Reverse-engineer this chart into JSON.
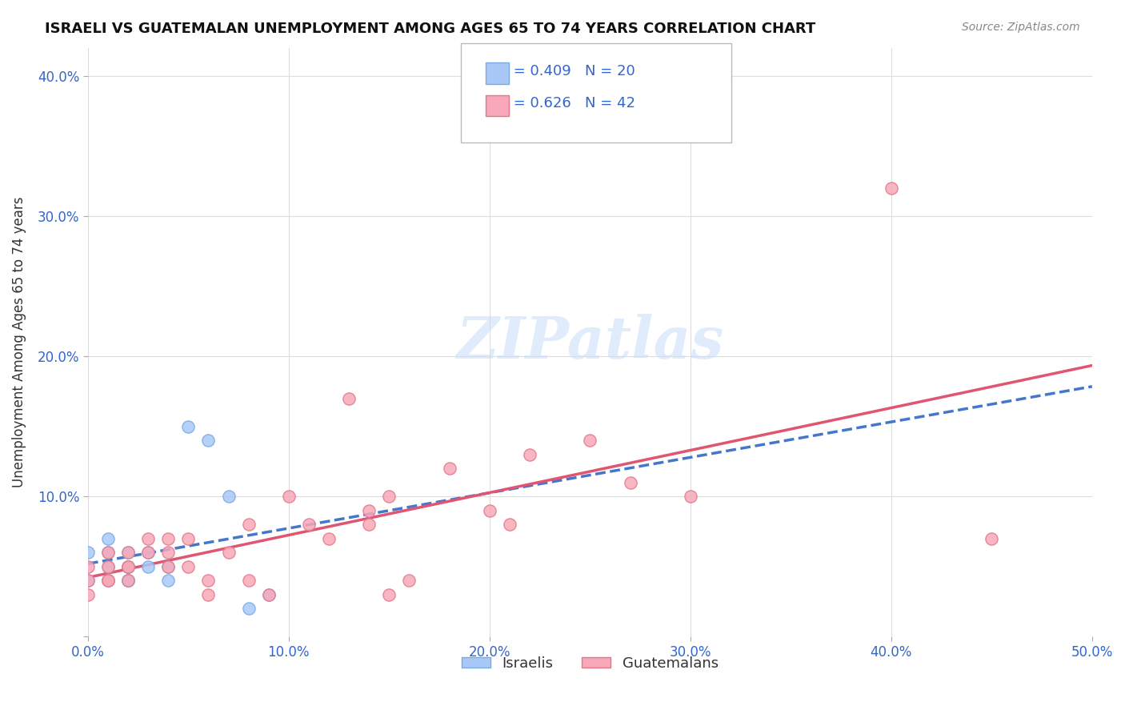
{
  "title": "ISRAELI VS GUATEMALAN UNEMPLOYMENT AMONG AGES 65 TO 74 YEARS CORRELATION CHART",
  "source": "Source: ZipAtlas.com",
  "xlabel": "",
  "ylabel": "Unemployment Among Ages 65 to 74 years",
  "xlim": [
    0.0,
    0.5
  ],
  "ylim": [
    0.0,
    0.42
  ],
  "xticks": [
    0.0,
    0.1,
    0.2,
    0.3,
    0.4,
    0.5
  ],
  "yticks": [
    0.0,
    0.1,
    0.2,
    0.3,
    0.4
  ],
  "xtick_labels": [
    "0.0%",
    "10.0%",
    "20.0%",
    "30.0%",
    "40.0%",
    "50.0%"
  ],
  "ytick_labels": [
    "",
    "10.0%",
    "20.0%",
    "30.0%",
    "40.0%"
  ],
  "israel_color": "#a8c8f8",
  "israel_edge": "#7aaae0",
  "guatemala_color": "#f8a8b8",
  "guatemala_edge": "#e07a8a",
  "israel_R": 0.409,
  "israel_N": 20,
  "guatemala_R": 0.626,
  "guatemala_N": 42,
  "israel_line_color": "#4477cc",
  "guatemala_line_color": "#e05570",
  "watermark": "ZIPatlas",
  "background_color": "#ffffff",
  "grid_color": "#dddddd",
  "legend_color": "#3366cc",
  "israel_points": [
    [
      0.0,
      0.04
    ],
    [
      0.0,
      0.06
    ],
    [
      0.01,
      0.05
    ],
    [
      0.01,
      0.06
    ],
    [
      0.01,
      0.04
    ],
    [
      0.01,
      0.07
    ],
    [
      0.02,
      0.05
    ],
    [
      0.02,
      0.06
    ],
    [
      0.02,
      0.04
    ],
    [
      0.02,
      0.05
    ],
    [
      0.02,
      0.04
    ],
    [
      0.03,
      0.05
    ],
    [
      0.03,
      0.06
    ],
    [
      0.04,
      0.05
    ],
    [
      0.04,
      0.04
    ],
    [
      0.05,
      0.15
    ],
    [
      0.06,
      0.14
    ],
    [
      0.07,
      0.1
    ],
    [
      0.08,
      0.02
    ],
    [
      0.09,
      0.03
    ]
  ],
  "guatemala_points": [
    [
      0.0,
      0.04
    ],
    [
      0.0,
      0.05
    ],
    [
      0.0,
      0.03
    ],
    [
      0.01,
      0.04
    ],
    [
      0.01,
      0.05
    ],
    [
      0.01,
      0.06
    ],
    [
      0.01,
      0.04
    ],
    [
      0.02,
      0.05
    ],
    [
      0.02,
      0.06
    ],
    [
      0.02,
      0.04
    ],
    [
      0.02,
      0.05
    ],
    [
      0.03,
      0.06
    ],
    [
      0.03,
      0.07
    ],
    [
      0.04,
      0.07
    ],
    [
      0.04,
      0.05
    ],
    [
      0.04,
      0.06
    ],
    [
      0.05,
      0.07
    ],
    [
      0.05,
      0.05
    ],
    [
      0.06,
      0.04
    ],
    [
      0.06,
      0.03
    ],
    [
      0.07,
      0.06
    ],
    [
      0.08,
      0.08
    ],
    [
      0.08,
      0.04
    ],
    [
      0.09,
      0.03
    ],
    [
      0.1,
      0.1
    ],
    [
      0.11,
      0.08
    ],
    [
      0.12,
      0.07
    ],
    [
      0.13,
      0.17
    ],
    [
      0.14,
      0.08
    ],
    [
      0.14,
      0.09
    ],
    [
      0.15,
      0.1
    ],
    [
      0.15,
      0.03
    ],
    [
      0.16,
      0.04
    ],
    [
      0.18,
      0.12
    ],
    [
      0.2,
      0.09
    ],
    [
      0.21,
      0.08
    ],
    [
      0.22,
      0.13
    ],
    [
      0.25,
      0.14
    ],
    [
      0.27,
      0.11
    ],
    [
      0.3,
      0.1
    ],
    [
      0.4,
      0.32
    ],
    [
      0.45,
      0.07
    ]
  ]
}
